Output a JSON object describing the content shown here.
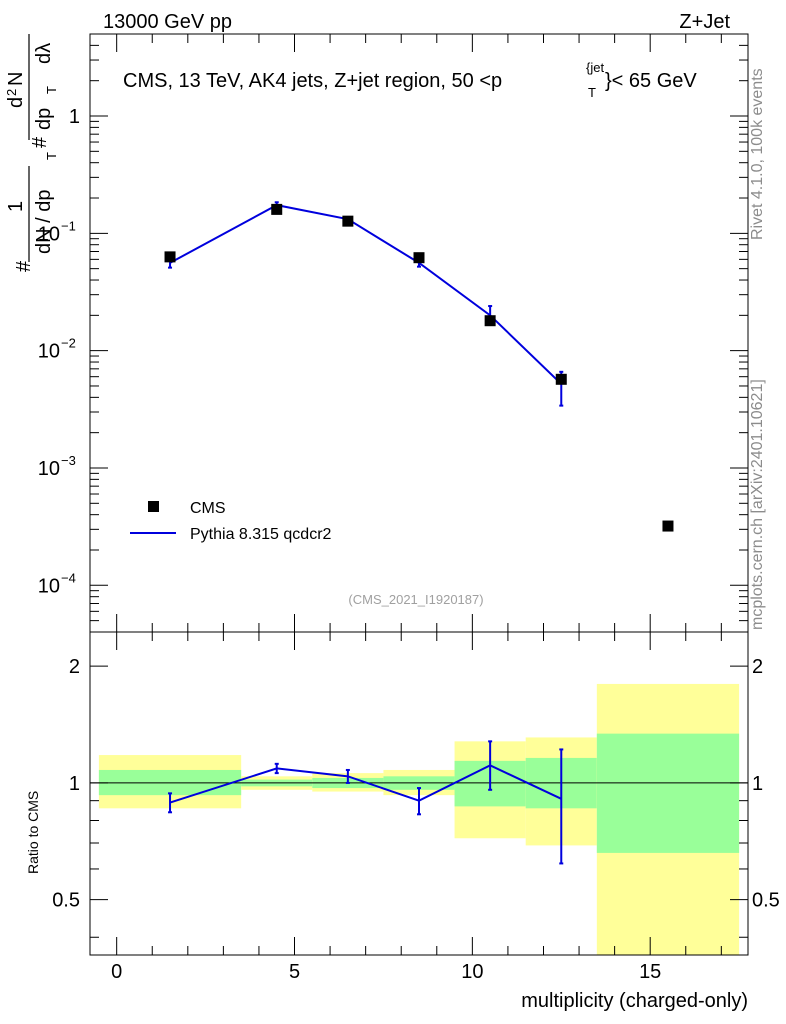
{
  "header": {
    "left": "13000 GeV pp",
    "right": "Z+Jet"
  },
  "side_text": {
    "rivet": "Rivet 4.1.0,  100k events",
    "mcplots": "mcplots.cern.ch [arXiv:2401.10621]"
  },
  "chart_data": [
    {
      "type": "scatter",
      "panel": "main",
      "title_main": "CMS, 13 TeV, AK4 jets, Z+jet region, 50 <p",
      "title_sub": "T",
      "title_sup": "{jet",
      "title_tail": "}< 65 GeV",
      "ylabel_parts": [
        "#",
        "1",
        "dN / dp",
        "T",
        "#",
        "d",
        "2",
        "N",
        "dp",
        "T",
        "dλ"
      ],
      "y_scale": "log",
      "ylim": [
        4e-05,
        5
      ],
      "xlim": [
        -0.75,
        17.75
      ],
      "y_ticks": [
        {
          "value": 1,
          "label": "1"
        },
        {
          "value": 0.1,
          "label": "10",
          "exp": "−1"
        },
        {
          "value": 0.01,
          "label": "10",
          "exp": "−2"
        },
        {
          "value": 0.001,
          "label": "10",
          "exp": "−3"
        },
        {
          "value": 0.0001,
          "label": "10",
          "exp": "−4"
        }
      ],
      "legend": {
        "position": "bottom-left",
        "cms_label": "CMS",
        "mc_label": "Pythia 8.315 qcdcr2"
      },
      "watermark": "(CMS_2021_I1920187)",
      "series": [
        {
          "name": "CMS",
          "marker": "square",
          "color": "#000000",
          "x": [
            1.5,
            4.5,
            6.5,
            8.5,
            10.5,
            12.5,
            15.5
          ],
          "y": [
            0.063,
            0.16,
            0.127,
            0.062,
            0.018,
            0.0057,
            0.00032
          ]
        },
        {
          "name": "Pythia 8.315 qcdcr2",
          "marker": "line",
          "color": "#0000dd",
          "x": [
            1.5,
            4.5,
            6.5,
            8.5,
            10.5,
            12.5
          ],
          "y": [
            0.056,
            0.174,
            0.132,
            0.056,
            0.02,
            0.0052
          ],
          "err_low": [
            0.005,
            0.01,
            0.005,
            0.004,
            0.003,
            0.0018
          ],
          "err_high": [
            0.005,
            0.01,
            0.005,
            0.004,
            0.004,
            0.0014
          ]
        }
      ]
    },
    {
      "type": "line",
      "panel": "ratio",
      "ylabel": "Ratio to CMS",
      "xlabel": "multiplicity (charged-only)",
      "y_scale": "log",
      "ylim": [
        0.36,
        2.45
      ],
      "xlim": [
        -0.75,
        17.75
      ],
      "y_ticks": [
        {
          "value": 0.5,
          "label": "0.5"
        },
        {
          "value": 1,
          "label": "1"
        },
        {
          "value": 2,
          "label": "2"
        }
      ],
      "x_ticks": [
        {
          "value": 0,
          "label": "0"
        },
        {
          "value": 5,
          "label": "5"
        },
        {
          "value": 10,
          "label": "10"
        },
        {
          "value": 15,
          "label": "15"
        }
      ],
      "bands": [
        {
          "x0": -0.5,
          "x1": 3.5,
          "yellow": [
            0.86,
            1.18
          ],
          "green": [
            0.93,
            1.08
          ]
        },
        {
          "x0": 3.5,
          "x1": 5.5,
          "yellow": [
            0.96,
            1.04
          ],
          "green": [
            0.98,
            1.02
          ]
        },
        {
          "x0": 5.5,
          "x1": 7.5,
          "yellow": [
            0.95,
            1.06
          ],
          "green": [
            0.97,
            1.03
          ]
        },
        {
          "x0": 7.5,
          "x1": 9.5,
          "yellow": [
            0.93,
            1.08
          ],
          "green": [
            0.96,
            1.04
          ]
        },
        {
          "x0": 9.5,
          "x1": 11.5,
          "yellow": [
            0.72,
            1.28
          ],
          "green": [
            0.87,
            1.14
          ]
        },
        {
          "x0": 11.5,
          "x1": 13.5,
          "yellow": [
            0.69,
            1.31
          ],
          "green": [
            0.86,
            1.16
          ]
        },
        {
          "x0": 13.5,
          "x1": 17.5,
          "yellow": [
            0.3,
            1.8
          ],
          "green": [
            0.66,
            1.34
          ]
        }
      ],
      "series": [
        {
          "name": "Pythia 8.315 qcdcr2",
          "color": "#0000dd",
          "x": [
            1.5,
            4.5,
            6.5,
            8.5,
            10.5,
            12.5
          ],
          "y": [
            0.89,
            1.09,
            1.04,
            0.9,
            1.11,
            0.91
          ],
          "err_low": [
            0.05,
            0.03,
            0.04,
            0.07,
            0.15,
            0.29
          ],
          "err_high": [
            0.05,
            0.03,
            0.04,
            0.07,
            0.17,
            0.31
          ]
        }
      ]
    }
  ]
}
